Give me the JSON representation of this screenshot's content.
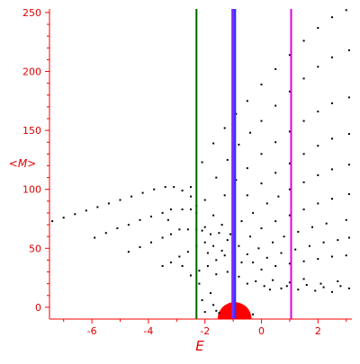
{
  "colors": {
    "axis": "#ff0000",
    "ticks_text": "#e00000",
    "points": "#000000",
    "blob": "#ff0000",
    "v_green": "#006400",
    "v_violet": "#7b2cff",
    "v_blue": "#3030ff",
    "v_magenta": "#e000e0"
  },
  "chart_data": {
    "type": "scatter",
    "title": "",
    "xlabel": "E",
    "ylabel": "<M>",
    "xlim": [
      -7.5,
      3.2
    ],
    "ylim": [
      -10,
      253
    ],
    "xticks": [
      -6,
      -4,
      -2,
      0,
      2
    ],
    "yticks": [
      0,
      50,
      100,
      150,
      200,
      250
    ],
    "grid": false,
    "vertical_lines": [
      {
        "x": -2.3,
        "color": "#006400"
      },
      {
        "x": -1.0,
        "color": "#7b2cff"
      },
      {
        "x": -0.93,
        "color": "#3030ff"
      },
      {
        "x": 1.05,
        "color": "#e000e0"
      }
    ],
    "highlight_region": {
      "shape": "semicircle",
      "center_x": -0.95,
      "center_y": -10,
      "radius_E": 0.6,
      "color": "#ff0000"
    },
    "series": [
      {
        "points": [
          [
            -7.4,
            73
          ],
          [
            -7.0,
            76
          ],
          [
            -6.6,
            79
          ],
          [
            -6.2,
            82
          ],
          [
            -5.8,
            85
          ],
          [
            -5.4,
            88
          ],
          [
            -5.0,
            91
          ],
          [
            -4.6,
            94
          ],
          [
            -4.2,
            97
          ],
          [
            -3.8,
            100
          ],
          [
            -3.4,
            102
          ],
          [
            -3.1,
            102
          ],
          [
            -2.8,
            99
          ],
          [
            -2.5,
            94
          ],
          [
            -2.3,
            86
          ]
        ]
      },
      {
        "points": [
          [
            -5.9,
            59
          ],
          [
            -5.5,
            63
          ],
          [
            -5.1,
            67
          ],
          [
            -4.7,
            70
          ],
          [
            -4.3,
            74
          ],
          [
            -3.9,
            77
          ],
          [
            -3.5,
            80
          ],
          [
            -3.2,
            83
          ],
          [
            -2.8,
            83
          ],
          [
            -2.5,
            83
          ],
          [
            -2.3,
            80
          ]
        ]
      },
      {
        "points": [
          [
            -4.7,
            47
          ],
          [
            -4.3,
            51
          ],
          [
            -3.9,
            55
          ],
          [
            -3.5,
            59
          ],
          [
            -3.2,
            62
          ],
          [
            -2.9,
            66
          ],
          [
            -2.6,
            66
          ],
          [
            -2.3,
            66
          ],
          [
            -2.1,
            65
          ],
          [
            -1.8,
            62
          ]
        ]
      },
      {
        "points": [
          [
            -3.5,
            35
          ],
          [
            -3.2,
            38
          ],
          [
            -2.9,
            43
          ],
          [
            -2.6,
            47
          ],
          [
            -2.3,
            52
          ],
          [
            -2.0,
            55
          ],
          [
            -1.7,
            52
          ],
          [
            -1.4,
            48
          ]
        ]
      },
      {
        "points": [
          [
            -2.5,
            27
          ],
          [
            -2.2,
            31
          ],
          [
            -1.9,
            35
          ],
          [
            -1.6,
            40
          ],
          [
            -1.3,
            44
          ],
          [
            -1.0,
            42
          ],
          [
            -0.7,
            38
          ]
        ]
      },
      {
        "points": [
          [
            -2.5,
            102
          ],
          [
            -2.1,
            123
          ],
          [
            -1.7,
            139
          ],
          [
            -1.3,
            152
          ],
          [
            -0.9,
            164
          ],
          [
            -0.5,
            175
          ],
          [
            0.0,
            189
          ],
          [
            0.5,
            202
          ],
          [
            1.0,
            214
          ],
          [
            1.5,
            226
          ],
          [
            2.0,
            237
          ],
          [
            2.5,
            246
          ],
          [
            3.0,
            252
          ]
        ]
      },
      {
        "points": [
          [
            -2.0,
            91
          ],
          [
            -1.6,
            110
          ],
          [
            -1.2,
            125
          ],
          [
            -0.8,
            138
          ],
          [
            -0.4,
            148
          ],
          [
            0.0,
            158
          ],
          [
            0.5,
            171
          ],
          [
            1.0,
            183
          ],
          [
            1.5,
            194
          ],
          [
            2.0,
            204
          ],
          [
            2.5,
            212
          ],
          [
            3.1,
            218
          ]
        ]
      },
      {
        "points": [
          [
            -1.7,
            78
          ],
          [
            -1.3,
            95
          ],
          [
            -0.9,
            108
          ],
          [
            -0.5,
            118
          ],
          [
            0.0,
            130
          ],
          [
            0.5,
            140
          ],
          [
            1.0,
            149
          ],
          [
            1.5,
            158
          ],
          [
            2.0,
            166
          ],
          [
            2.5,
            173
          ],
          [
            3.1,
            178
          ]
        ]
      },
      {
        "points": [
          [
            -1.4,
            70
          ],
          [
            -1.0,
            83
          ],
          [
            -0.5,
            95
          ],
          [
            0.0,
            105
          ],
          [
            0.5,
            114
          ],
          [
            1.0,
            122
          ],
          [
            1.5,
            130
          ],
          [
            2.0,
            137
          ],
          [
            2.5,
            143
          ],
          [
            3.1,
            147
          ]
        ]
      },
      {
        "points": [
          [
            -1.1,
            62
          ],
          [
            -0.7,
            73
          ],
          [
            -0.3,
            80
          ],
          [
            0.2,
            88
          ],
          [
            0.6,
            94
          ],
          [
            1.0,
            100
          ],
          [
            1.5,
            106
          ],
          [
            2.0,
            112
          ],
          [
            2.5,
            117
          ],
          [
            3.1,
            121
          ]
        ]
      },
      {
        "points": [
          [
            -0.8,
            52
          ],
          [
            -0.4,
            60
          ],
          [
            0.0,
            67
          ],
          [
            0.5,
            73
          ],
          [
            1.0,
            78
          ],
          [
            1.5,
            83
          ],
          [
            2.0,
            88
          ],
          [
            2.5,
            92
          ],
          [
            3.1,
            96
          ]
        ]
      },
      {
        "points": [
          [
            -0.5,
            45
          ],
          [
            -0.1,
            50
          ],
          [
            0.4,
            55
          ],
          [
            0.8,
            60
          ],
          [
            1.3,
            64
          ],
          [
            1.8,
            68
          ],
          [
            2.3,
            71
          ],
          [
            3.0,
            74
          ]
        ]
      },
      {
        "points": [
          [
            -0.3,
            38
          ],
          [
            0.2,
            42
          ],
          [
            0.7,
            46
          ],
          [
            1.2,
            49
          ],
          [
            1.7,
            52
          ],
          [
            2.2,
            55
          ],
          [
            2.7,
            57
          ],
          [
            3.1,
            59
          ]
        ]
      },
      {
        "points": [
          [
            0.0,
            32
          ],
          [
            0.5,
            35
          ],
          [
            1.0,
            37
          ],
          [
            1.5,
            39
          ],
          [
            2.0,
            41
          ],
          [
            2.5,
            43
          ],
          [
            3.0,
            44
          ]
        ]
      },
      {
        "points": [
          [
            -0.5,
            20
          ],
          [
            -0.2,
            22
          ],
          [
            0.1,
            18
          ],
          [
            0.4,
            23
          ],
          [
            0.7,
            16
          ],
          [
            1.0,
            21
          ],
          [
            1.3,
            15
          ],
          [
            1.6,
            19
          ],
          [
            1.9,
            14
          ],
          [
            2.2,
            17
          ],
          [
            2.5,
            13
          ],
          [
            2.8,
            18
          ],
          [
            3.1,
            16
          ],
          [
            -1.6,
            28
          ],
          [
            -1.2,
            30
          ],
          [
            -0.8,
            26
          ],
          [
            0.3,
            15
          ],
          [
            0.9,
            18
          ],
          [
            1.5,
            24
          ],
          [
            2.1,
            20
          ],
          [
            2.7,
            22
          ]
        ]
      },
      {
        "points": [
          [
            -2.8,
            35
          ],
          [
            -2.0,
            68
          ],
          [
            -1.9,
            46
          ],
          [
            -1.5,
            63
          ],
          [
            -1.2,
            57
          ],
          [
            -1.5,
            -5
          ],
          [
            -0.3,
            -6
          ],
          [
            -1.6,
            -3
          ],
          [
            -2.2,
            20
          ],
          [
            -1.8,
            12
          ],
          [
            -2.1,
            6
          ],
          [
            -1.7,
            2
          ],
          [
            -2.0,
            -4
          ],
          [
            -3.3,
            74
          ]
        ]
      }
    ]
  }
}
